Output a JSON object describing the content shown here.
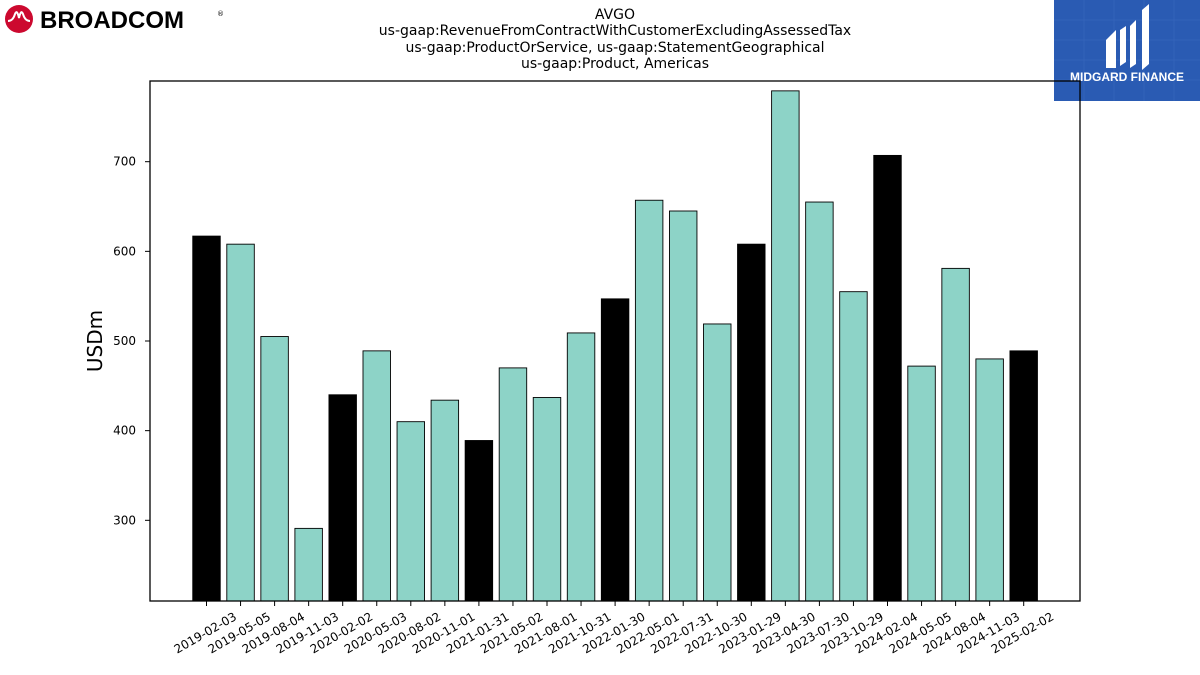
{
  "brand_left": {
    "name": "BROADCOM",
    "mark": "®",
    "color": "#cc092f"
  },
  "brand_right": {
    "name": "MIDGARD FINANCE",
    "color": "#2a5bb3"
  },
  "title_lines": [
    "AVGO",
    "us-gaap:RevenueFromContractWithCustomerExcludingAssessedTax",
    "us-gaap:ProductOrService, us-gaap:StatementGeographical",
    "us-gaap:Product, Americas"
  ],
  "chart_data": {
    "type": "bar",
    "title": "AVGO",
    "xlabel": "",
    "ylabel": "USDm",
    "ylim": [
      210,
      790
    ],
    "yticks": [
      300,
      400,
      500,
      600,
      700
    ],
    "grid": false,
    "colors": {
      "highlight": "#000000",
      "normal": "#8dd3c7",
      "edge": "#000000"
    },
    "categories": [
      "2019-02-03",
      "2019-05-05",
      "2019-08-04",
      "2019-11-03",
      "2020-02-02",
      "2020-05-03",
      "2020-08-02",
      "2020-11-01",
      "2021-01-31",
      "2021-05-02",
      "2021-08-01",
      "2021-10-31",
      "2022-01-30",
      "2022-05-01",
      "2022-07-31",
      "2022-10-30",
      "2023-01-29",
      "2023-04-30",
      "2023-07-30",
      "2023-10-29",
      "2024-02-04",
      "2024-05-05",
      "2024-08-04",
      "2024-11-03",
      "2025-02-02"
    ],
    "values": [
      617,
      608,
      505,
      291,
      440,
      489,
      410,
      434,
      389,
      470,
      437,
      509,
      547,
      657,
      645,
      519,
      608,
      779,
      655,
      555,
      707,
      472,
      581,
      480,
      489
    ],
    "highlighted": [
      true,
      false,
      false,
      false,
      true,
      false,
      false,
      false,
      true,
      false,
      false,
      false,
      true,
      false,
      false,
      false,
      true,
      false,
      false,
      false,
      true,
      false,
      false,
      false,
      true
    ]
  }
}
